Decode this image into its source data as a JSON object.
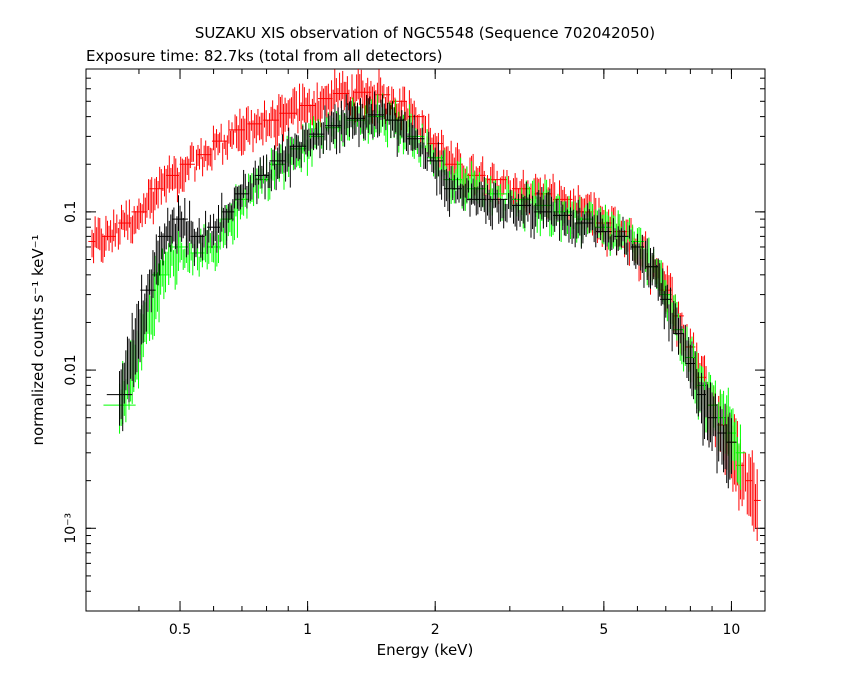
{
  "chart_data": {
    "type": "scatter",
    "title": "SUZAKU XIS observation of NGC5548 (Sequence 702042050)",
    "subtitle": "Exposure time: 82.7ks (total from all detectors)",
    "xlabel": "Energy (keV)",
    "ylabel": "normalized counts s⁻¹ keV⁻¹",
    "xscale": "log",
    "yscale": "log",
    "xlim": [
      0.3,
      12
    ],
    "ylim": [
      0.0003,
      0.8
    ],
    "grid": false,
    "x_ticks": [
      {
        "value": 0.5,
        "label": "0.5"
      },
      {
        "value": 1,
        "label": "1"
      },
      {
        "value": 2,
        "label": "2"
      },
      {
        "value": 5,
        "label": "5"
      },
      {
        "value": 10,
        "label": "10"
      }
    ],
    "y_ticks": [
      {
        "value": 0.1,
        "label": "0.1"
      },
      {
        "value": 0.01,
        "label": "0.01"
      },
      {
        "value": 0.001,
        "label": "10⁻³"
      }
    ],
    "series": [
      {
        "color": "#ff0000",
        "points": [
          {
            "x": 0.31,
            "y": 0.065
          },
          {
            "x": 0.34,
            "y": 0.07
          },
          {
            "x": 0.37,
            "y": 0.085
          },
          {
            "x": 0.4,
            "y": 0.1
          },
          {
            "x": 0.44,
            "y": 0.14
          },
          {
            "x": 0.48,
            "y": 0.17
          },
          {
            "x": 0.52,
            "y": 0.2
          },
          {
            "x": 0.57,
            "y": 0.23
          },
          {
            "x": 0.62,
            "y": 0.28
          },
          {
            "x": 0.68,
            "y": 0.33
          },
          {
            "x": 0.75,
            "y": 0.36
          },
          {
            "x": 0.82,
            "y": 0.38
          },
          {
            "x": 0.9,
            "y": 0.42
          },
          {
            "x": 1.0,
            "y": 0.47
          },
          {
            "x": 1.1,
            "y": 0.52
          },
          {
            "x": 1.2,
            "y": 0.56
          },
          {
            "x": 1.35,
            "y": 0.57
          },
          {
            "x": 1.5,
            "y": 0.55
          },
          {
            "x": 1.65,
            "y": 0.5
          },
          {
            "x": 1.8,
            "y": 0.4
          },
          {
            "x": 2.0,
            "y": 0.27
          },
          {
            "x": 2.2,
            "y": 0.2
          },
          {
            "x": 2.5,
            "y": 0.17
          },
          {
            "x": 2.8,
            "y": 0.16
          },
          {
            "x": 3.2,
            "y": 0.14
          },
          {
            "x": 3.6,
            "y": 0.13
          },
          {
            "x": 4.0,
            "y": 0.12
          },
          {
            "x": 4.5,
            "y": 0.1
          },
          {
            "x": 5.0,
            "y": 0.085
          },
          {
            "x": 5.5,
            "y": 0.075
          },
          {
            "x": 6.0,
            "y": 0.06
          },
          {
            "x": 6.5,
            "y": 0.045
          },
          {
            "x": 7.0,
            "y": 0.032
          },
          {
            "x": 7.5,
            "y": 0.022
          },
          {
            "x": 8.0,
            "y": 0.014
          },
          {
            "x": 8.5,
            "y": 0.009
          },
          {
            "x": 9.0,
            "y": 0.006
          },
          {
            "x": 9.5,
            "y": 0.0045
          },
          {
            "x": 10.0,
            "y": 0.0035
          },
          {
            "x": 10.5,
            "y": 0.0025
          },
          {
            "x": 11.0,
            "y": 0.002
          },
          {
            "x": 11.5,
            "y": 0.0015
          }
        ]
      },
      {
        "color": "#00ff00",
        "points": [
          {
            "x": 0.36,
            "y": 0.006
          },
          {
            "x": 0.45,
            "y": 0.04
          },
          {
            "x": 0.5,
            "y": 0.06
          },
          {
            "x": 0.55,
            "y": 0.055
          },
          {
            "x": 0.6,
            "y": 0.06
          },
          {
            "x": 0.65,
            "y": 0.09
          },
          {
            "x": 0.7,
            "y": 0.12
          },
          {
            "x": 0.78,
            "y": 0.16
          },
          {
            "x": 0.85,
            "y": 0.2
          },
          {
            "x": 0.95,
            "y": 0.25
          },
          {
            "x": 1.05,
            "y": 0.3
          },
          {
            "x": 1.15,
            "y": 0.34
          },
          {
            "x": 1.3,
            "y": 0.38
          },
          {
            "x": 1.45,
            "y": 0.4
          },
          {
            "x": 1.6,
            "y": 0.38
          },
          {
            "x": 1.8,
            "y": 0.3
          },
          {
            "x": 2.0,
            "y": 0.22
          },
          {
            "x": 2.2,
            "y": 0.16
          },
          {
            "x": 2.5,
            "y": 0.14
          },
          {
            "x": 2.8,
            "y": 0.13
          },
          {
            "x": 3.2,
            "y": 0.12
          },
          {
            "x": 3.6,
            "y": 0.11
          },
          {
            "x": 4.0,
            "y": 0.1
          },
          {
            "x": 4.5,
            "y": 0.09
          },
          {
            "x": 5.0,
            "y": 0.08
          },
          {
            "x": 5.5,
            "y": 0.07
          },
          {
            "x": 6.0,
            "y": 0.065
          },
          {
            "x": 6.5,
            "y": 0.045
          },
          {
            "x": 7.0,
            "y": 0.03
          },
          {
            "x": 7.5,
            "y": 0.018
          },
          {
            "x": 8.0,
            "y": 0.012
          },
          {
            "x": 8.5,
            "y": 0.008
          },
          {
            "x": 9.0,
            "y": 0.006
          },
          {
            "x": 9.5,
            "y": 0.005
          },
          {
            "x": 10.0,
            "y": 0.004
          },
          {
            "x": 10.5,
            "y": 0.003
          }
        ]
      },
      {
        "color": "#000000",
        "points": [
          {
            "x": 0.36,
            "y": 0.007
          },
          {
            "x": 0.42,
            "y": 0.032
          },
          {
            "x": 0.46,
            "y": 0.07
          },
          {
            "x": 0.5,
            "y": 0.09
          },
          {
            "x": 0.55,
            "y": 0.07
          },
          {
            "x": 0.6,
            "y": 0.08
          },
          {
            "x": 0.65,
            "y": 0.1
          },
          {
            "x": 0.7,
            "y": 0.13
          },
          {
            "x": 0.78,
            "y": 0.17
          },
          {
            "x": 0.85,
            "y": 0.21
          },
          {
            "x": 0.95,
            "y": 0.26
          },
          {
            "x": 1.05,
            "y": 0.31
          },
          {
            "x": 1.15,
            "y": 0.35
          },
          {
            "x": 1.3,
            "y": 0.39
          },
          {
            "x": 1.45,
            "y": 0.41
          },
          {
            "x": 1.6,
            "y": 0.38
          },
          {
            "x": 1.8,
            "y": 0.29
          },
          {
            "x": 2.0,
            "y": 0.21
          },
          {
            "x": 2.2,
            "y": 0.14
          },
          {
            "x": 2.5,
            "y": 0.12
          },
          {
            "x": 2.8,
            "y": 0.12
          },
          {
            "x": 3.2,
            "y": 0.11
          },
          {
            "x": 3.6,
            "y": 0.1
          },
          {
            "x": 4.0,
            "y": 0.095
          },
          {
            "x": 4.5,
            "y": 0.085
          },
          {
            "x": 5.0,
            "y": 0.075
          },
          {
            "x": 5.5,
            "y": 0.07
          },
          {
            "x": 6.0,
            "y": 0.06
          },
          {
            "x": 6.5,
            "y": 0.045
          },
          {
            "x": 7.0,
            "y": 0.028
          },
          {
            "x": 7.5,
            "y": 0.017
          },
          {
            "x": 8.0,
            "y": 0.011
          },
          {
            "x": 8.5,
            "y": 0.007
          },
          {
            "x": 9.0,
            "y": 0.005
          },
          {
            "x": 9.5,
            "y": 0.004
          },
          {
            "x": 10.0,
            "y": 0.0035
          }
        ]
      }
    ]
  }
}
